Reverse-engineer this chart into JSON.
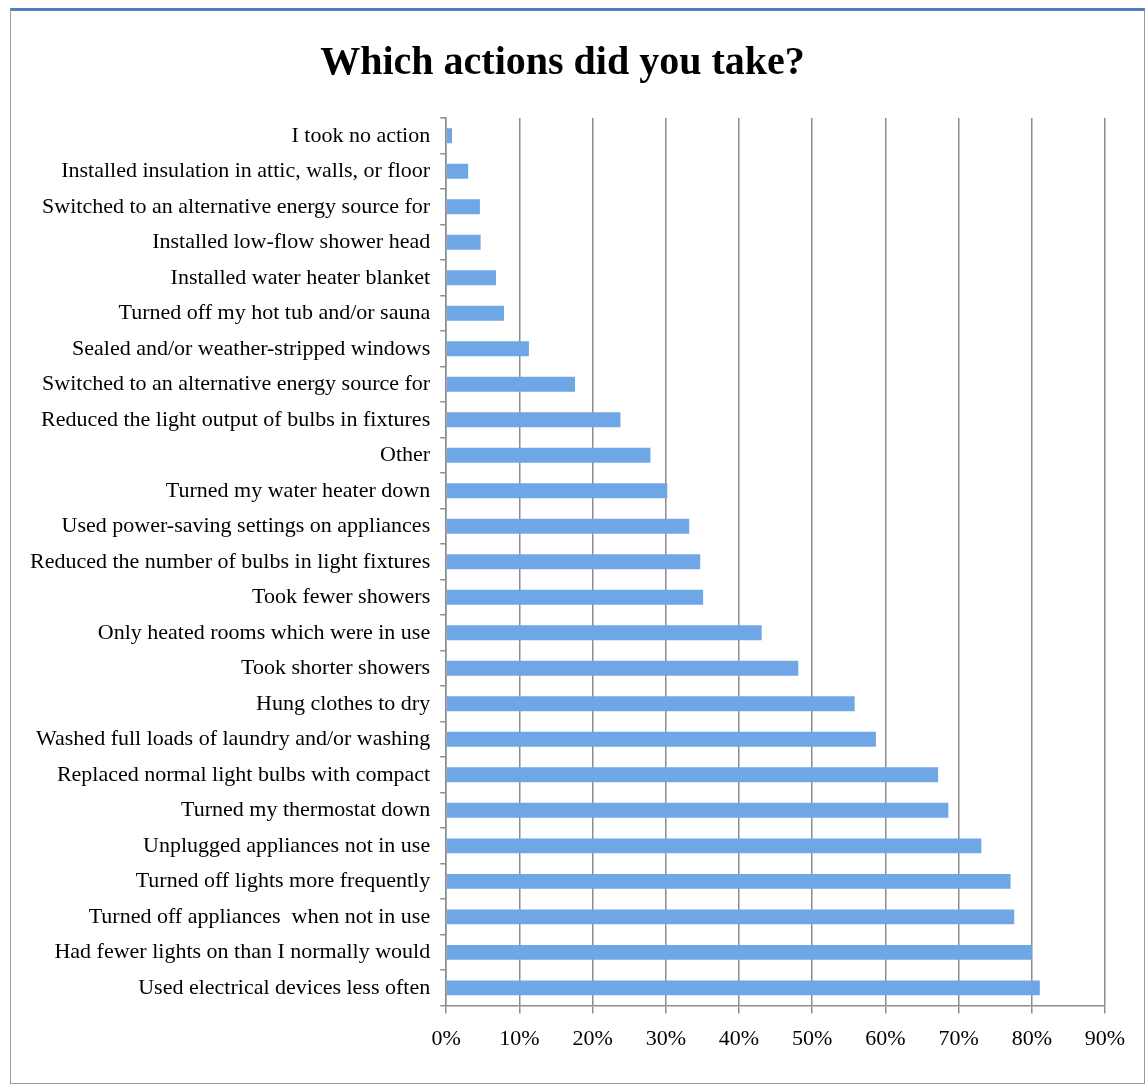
{
  "chart_data": {
    "type": "bar",
    "orientation": "horizontal",
    "title": "Which actions did you take?",
    "categories": [
      "I took no action",
      "Installed insulation in attic, walls, or floor",
      "Switched to an alternative energy source for",
      "Installed low-flow shower head",
      "Installed water heater blanket",
      "Turned off my hot tub and/or sauna",
      "Sealed and/or weather-stripped windows",
      "Switched to an alternative energy source for",
      "Reduced the light output of bulbs in fixtures",
      "Other",
      "Turned my water heater down",
      "Used power-saving settings on appliances",
      "Reduced the number of bulbs in light fixtures",
      "Took fewer showers",
      "Only heated rooms which were in use",
      "Took shorter showers",
      "Hung clothes to dry",
      "Washed full loads of laundry and/or washing",
      "Replaced normal light bulbs with compact",
      "Turned my thermostat down",
      "Unplugged appliances not in use",
      "Turned off lights more frequently",
      "Turned off appliances  when not in use",
      "Had fewer lights on than I normally would",
      "Used electrical devices less often"
    ],
    "values": [
      0.8,
      3,
      4.6,
      4.7,
      6.8,
      7.9,
      11.3,
      17.6,
      23.8,
      27.9,
      30.2,
      33.2,
      34.7,
      35.1,
      43.1,
      48.1,
      55.8,
      58.7,
      67.2,
      68.6,
      73.1,
      77.1,
      77.6,
      80,
      81.1
    ],
    "color": "#6fa6e6",
    "xlim": [
      0,
      90
    ],
    "xticks": [
      {
        "value": 0,
        "label": "0%"
      },
      {
        "value": 10,
        "label": "10%"
      },
      {
        "value": 20,
        "label": "20%"
      },
      {
        "value": 30,
        "label": "30%"
      },
      {
        "value": 40,
        "label": "40%"
      },
      {
        "value": 50,
        "label": "50%"
      },
      {
        "value": 60,
        "label": "60%"
      },
      {
        "value": 70,
        "label": "70%"
      },
      {
        "value": 80,
        "label": "80%"
      },
      {
        "value": 90,
        "label": "90%"
      }
    ],
    "grid": "x"
  }
}
